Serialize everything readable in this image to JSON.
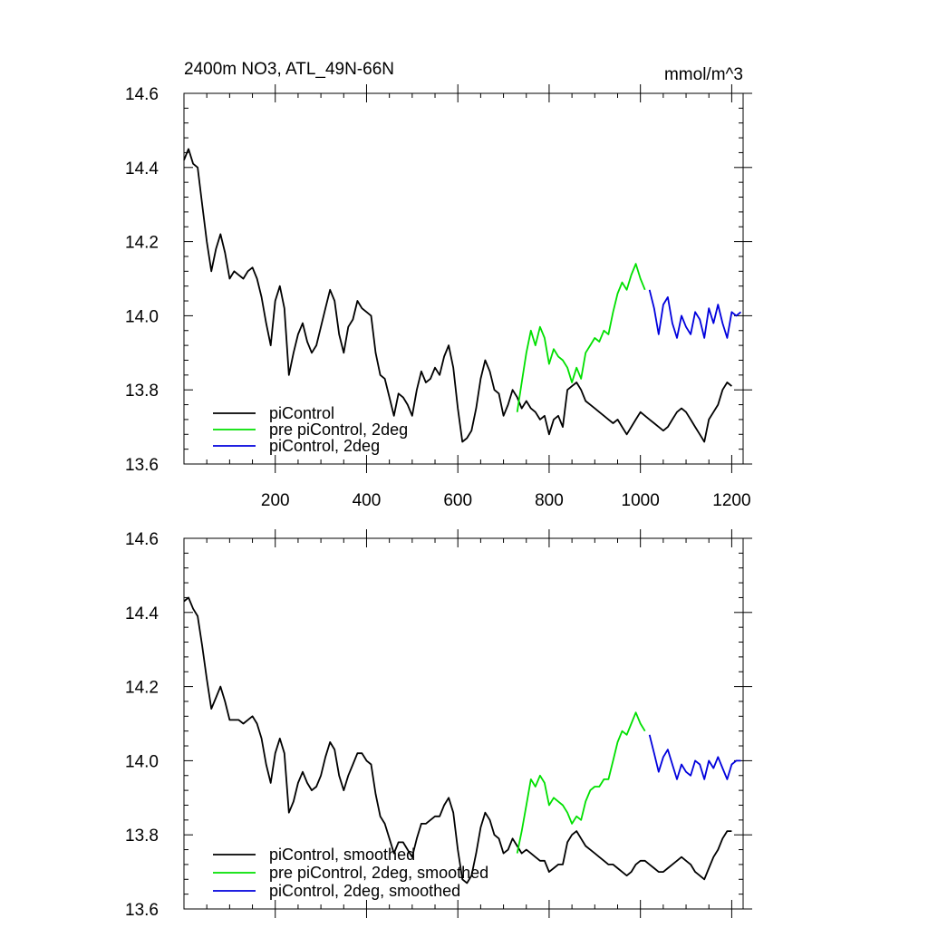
{
  "figure": {
    "title_left": "2400m NO3, ATL_49N-66N",
    "title_right": "mmol/m^3"
  },
  "chart_data": [
    {
      "type": "line",
      "title": "2400m NO3, ATL_49N-66N",
      "units": "mmol/m^3",
      "xlim": [
        0,
        1225
      ],
      "ylim": [
        13.6,
        14.6
      ],
      "x_ticks": [
        200,
        400,
        600,
        800,
        1000,
        1200
      ],
      "x_tick_labels": [
        "200",
        "400",
        "600",
        "800",
        "1000",
        "1200"
      ],
      "y_ticks": [
        13.6,
        13.8,
        14.0,
        14.2,
        14.4,
        14.6
      ],
      "y_tick_labels": [
        "13.6",
        "13.8",
        "14.0",
        "14.2",
        "14.4",
        "14.6"
      ],
      "legend_position": "bottom-left",
      "series": [
        {
          "name": "piControl",
          "color": "#000000",
          "x": [
            0,
            10,
            20,
            30,
            40,
            50,
            60,
            70,
            80,
            90,
            100,
            110,
            120,
            130,
            140,
            150,
            160,
            170,
            180,
            190,
            200,
            210,
            220,
            230,
            240,
            250,
            260,
            270,
            280,
            290,
            300,
            310,
            320,
            330,
            340,
            350,
            360,
            370,
            380,
            390,
            400,
            410,
            420,
            430,
            440,
            450,
            460,
            470,
            480,
            490,
            500,
            510,
            520,
            530,
            540,
            550,
            560,
            570,
            580,
            590,
            600,
            610,
            620,
            630,
            640,
            650,
            660,
            670,
            680,
            690,
            700,
            710,
            720,
            730,
            740,
            750,
            760,
            770,
            780,
            790,
            800,
            810,
            820,
            830,
            840,
            850,
            860,
            870,
            880,
            890,
            900,
            910,
            920,
            930,
            940,
            950,
            960,
            970,
            980,
            990,
            1000,
            1010,
            1020,
            1030,
            1040,
            1050,
            1060,
            1070,
            1080,
            1090,
            1100,
            1110,
            1120,
            1130,
            1140,
            1150,
            1160,
            1170,
            1180,
            1190,
            1200
          ],
          "y": [
            14.42,
            14.45,
            14.41,
            14.4,
            14.3,
            14.2,
            14.12,
            14.18,
            14.22,
            14.17,
            14.1,
            14.12,
            14.11,
            14.1,
            14.12,
            14.13,
            14.1,
            14.05,
            13.98,
            13.92,
            14.04,
            14.08,
            14.02,
            13.84,
            13.9,
            13.95,
            13.98,
            13.93,
            13.9,
            13.92,
            13.97,
            14.02,
            14.07,
            14.04,
            13.95,
            13.9,
            13.97,
            13.99,
            14.04,
            14.02,
            14.01,
            14.0,
            13.9,
            13.84,
            13.83,
            13.78,
            13.73,
            13.79,
            13.78,
            13.76,
            13.73,
            13.8,
            13.85,
            13.82,
            13.83,
            13.86,
            13.84,
            13.89,
            13.92,
            13.86,
            13.75,
            13.66,
            13.67,
            13.69,
            13.75,
            13.83,
            13.88,
            13.85,
            13.8,
            13.79,
            13.73,
            13.76,
            13.8,
            13.78,
            13.75,
            13.77,
            13.75,
            13.74,
            13.72,
            13.73,
            13.68,
            13.72,
            13.73,
            13.7,
            13.8,
            13.81,
            13.82,
            13.8,
            13.77,
            13.76,
            13.75,
            13.74,
            13.73,
            13.72,
            13.71,
            13.72,
            13.7,
            13.68,
            13.7,
            13.72,
            13.74,
            13.73,
            13.72,
            13.71,
            13.7,
            13.69,
            13.7,
            13.72,
            13.74,
            13.75,
            13.74,
            13.72,
            13.7,
            13.68,
            13.66,
            13.72,
            13.74,
            13.76,
            13.8,
            13.82,
            13.81
          ]
        },
        {
          "name": "pre piControl, 2deg",
          "color": "#00e000",
          "x": [
            730,
            740,
            750,
            760,
            770,
            780,
            790,
            800,
            810,
            820,
            830,
            840,
            850,
            860,
            870,
            880,
            890,
            900,
            910,
            920,
            930,
            940,
            950,
            960,
            970,
            980,
            990,
            1000,
            1010
          ],
          "y": [
            13.74,
            13.82,
            13.9,
            13.96,
            13.92,
            13.97,
            13.94,
            13.87,
            13.91,
            13.89,
            13.88,
            13.86,
            13.82,
            13.86,
            13.83,
            13.9,
            13.92,
            13.94,
            13.93,
            13.96,
            13.95,
            14.01,
            14.06,
            14.09,
            14.07,
            14.11,
            14.14,
            14.1,
            14.07
          ]
        },
        {
          "name": "piControl, 2deg",
          "color": "#0000dd",
          "x": [
            1020,
            1030,
            1040,
            1050,
            1060,
            1070,
            1080,
            1090,
            1100,
            1110,
            1120,
            1130,
            1140,
            1150,
            1160,
            1170,
            1180,
            1190,
            1200,
            1210,
            1220
          ],
          "y": [
            14.07,
            14.02,
            13.95,
            14.03,
            14.05,
            13.98,
            13.94,
            14.0,
            13.97,
            13.95,
            14.01,
            13.99,
            13.94,
            14.02,
            13.98,
            14.03,
            13.98,
            13.94,
            14.01,
            14.0,
            14.01
          ]
        }
      ]
    },
    {
      "type": "line",
      "xlim": [
        0,
        1225
      ],
      "ylim": [
        13.6,
        14.6
      ],
      "x_ticks": [
        200,
        400,
        600,
        800,
        1000,
        1200
      ],
      "y_ticks": [
        13.6,
        13.8,
        14.0,
        14.2,
        14.4,
        14.6
      ],
      "y_tick_labels": [
        "13.6",
        "13.8",
        "14.0",
        "14.2",
        "14.4",
        "14.6"
      ],
      "legend_position": "bottom-left",
      "series": [
        {
          "name": "piControl, smoothed",
          "color": "#000000",
          "x": [
            0,
            10,
            20,
            30,
            40,
            50,
            60,
            70,
            80,
            90,
            100,
            110,
            120,
            130,
            140,
            150,
            160,
            170,
            180,
            190,
            200,
            210,
            220,
            230,
            240,
            250,
            260,
            270,
            280,
            290,
            300,
            310,
            320,
            330,
            340,
            350,
            360,
            370,
            380,
            390,
            400,
            410,
            420,
            430,
            440,
            450,
            460,
            470,
            480,
            490,
            500,
            510,
            520,
            530,
            540,
            550,
            560,
            570,
            580,
            590,
            600,
            610,
            620,
            630,
            640,
            650,
            660,
            670,
            680,
            690,
            700,
            710,
            720,
            730,
            740,
            750,
            760,
            770,
            780,
            790,
            800,
            810,
            820,
            830,
            840,
            850,
            860,
            870,
            880,
            890,
            900,
            910,
            920,
            930,
            940,
            950,
            960,
            970,
            980,
            990,
            1000,
            1010,
            1020,
            1030,
            1040,
            1050,
            1060,
            1070,
            1080,
            1090,
            1100,
            1110,
            1120,
            1130,
            1140,
            1150,
            1160,
            1170,
            1180,
            1190,
            1200
          ],
          "y": [
            14.43,
            14.44,
            14.41,
            14.39,
            14.31,
            14.22,
            14.14,
            14.17,
            14.2,
            14.16,
            14.11,
            14.11,
            14.11,
            14.1,
            14.11,
            14.12,
            14.1,
            14.06,
            13.99,
            13.94,
            14.02,
            14.06,
            14.02,
            13.86,
            13.89,
            13.94,
            13.97,
            13.94,
            13.92,
            13.93,
            13.96,
            14.01,
            14.05,
            14.03,
            13.96,
            13.92,
            13.96,
            13.99,
            14.02,
            14.02,
            14.0,
            13.99,
            13.91,
            13.85,
            13.83,
            13.79,
            13.75,
            13.78,
            13.78,
            13.76,
            13.74,
            13.79,
            13.83,
            13.83,
            13.84,
            13.85,
            13.85,
            13.88,
            13.9,
            13.86,
            13.76,
            13.68,
            13.67,
            13.69,
            13.75,
            13.82,
            13.86,
            13.84,
            13.8,
            13.79,
            13.75,
            13.76,
            13.79,
            13.77,
            13.75,
            13.76,
            13.75,
            13.74,
            13.73,
            13.73,
            13.7,
            13.71,
            13.72,
            13.72,
            13.78,
            13.8,
            13.81,
            13.79,
            13.77,
            13.76,
            13.75,
            13.74,
            13.73,
            13.72,
            13.72,
            13.71,
            13.7,
            13.69,
            13.7,
            13.72,
            13.73,
            13.73,
            13.72,
            13.71,
            13.7,
            13.7,
            13.71,
            13.72,
            13.73,
            13.74,
            13.73,
            13.72,
            13.7,
            13.69,
            13.68,
            13.71,
            13.74,
            13.76,
            13.79,
            13.81,
            13.81
          ]
        },
        {
          "name": "pre piControl, 2deg, smoothed",
          "color": "#00e000",
          "x": [
            730,
            740,
            750,
            760,
            770,
            780,
            790,
            800,
            810,
            820,
            830,
            840,
            850,
            860,
            870,
            880,
            890,
            900,
            910,
            920,
            930,
            940,
            950,
            960,
            970,
            980,
            990,
            1000,
            1010
          ],
          "y": [
            13.75,
            13.81,
            13.88,
            13.95,
            13.93,
            13.96,
            13.94,
            13.88,
            13.9,
            13.89,
            13.88,
            13.86,
            13.83,
            13.85,
            13.84,
            13.89,
            13.92,
            13.93,
            13.93,
            13.95,
            13.95,
            14.0,
            14.05,
            14.08,
            14.07,
            14.1,
            14.13,
            14.1,
            14.08
          ]
        },
        {
          "name": "piControl, 2deg, smoothed",
          "color": "#0000dd",
          "x": [
            1020,
            1030,
            1040,
            1050,
            1060,
            1070,
            1080,
            1090,
            1100,
            1110,
            1120,
            1130,
            1140,
            1150,
            1160,
            1170,
            1180,
            1190,
            1200,
            1210,
            1220
          ],
          "y": [
            14.07,
            14.02,
            13.97,
            14.01,
            14.03,
            13.99,
            13.95,
            13.99,
            13.97,
            13.96,
            14.0,
            13.99,
            13.95,
            14.0,
            13.98,
            14.01,
            13.98,
            13.95,
            13.99,
            14.0,
            14.0
          ]
        }
      ]
    }
  ]
}
